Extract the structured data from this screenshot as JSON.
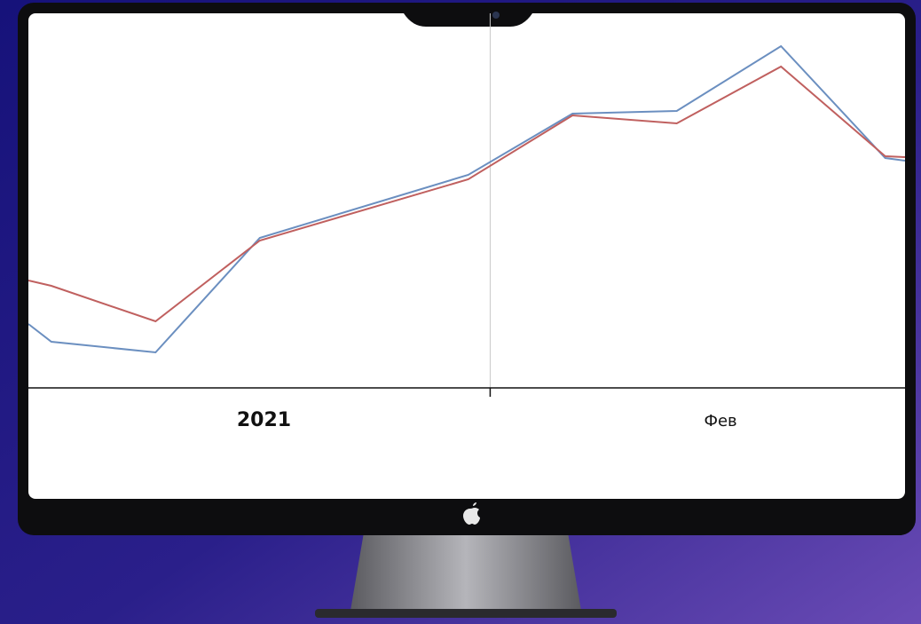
{
  "chart_data": {
    "type": "line",
    "x": [
      -1.22,
      -1,
      0,
      1,
      3,
      4,
      5,
      6,
      7,
      7.19
    ],
    "xlim": [
      -1.22,
      7.19
    ],
    "xticks": [
      3.21
    ],
    "x_labels": [
      {
        "value": 1.04,
        "label": "2021"
      },
      {
        "value": 5.42,
        "label": "Фев"
      }
    ],
    "ylim": [
      0,
      422
    ],
    "series": [
      {
        "color": "#6b8fc0",
        "values": [
          72,
          52,
          40,
          169,
          240,
          309,
          312,
          385,
          259,
          256
        ]
      },
      {
        "color": "#c0605f",
        "values": [
          121,
          115,
          75,
          166,
          235,
          307,
          298,
          362,
          261,
          260
        ]
      }
    ]
  }
}
